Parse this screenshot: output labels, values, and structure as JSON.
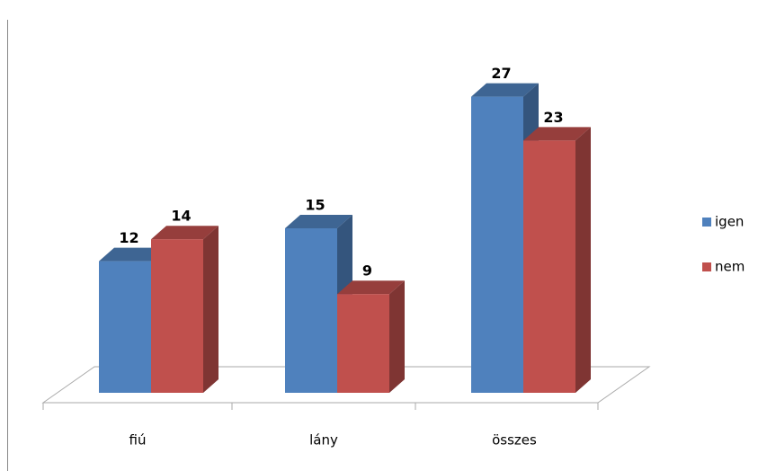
{
  "chart_data": {
    "type": "bar3d",
    "categories": [
      "fiú",
      "lány",
      "összes"
    ],
    "series": [
      {
        "name": "igen",
        "color": "#4f81bd",
        "values": [
          12,
          15,
          27
        ]
      },
      {
        "name": "nem",
        "color": "#c0504d",
        "values": [
          14,
          9,
          23
        ]
      }
    ]
  }
}
